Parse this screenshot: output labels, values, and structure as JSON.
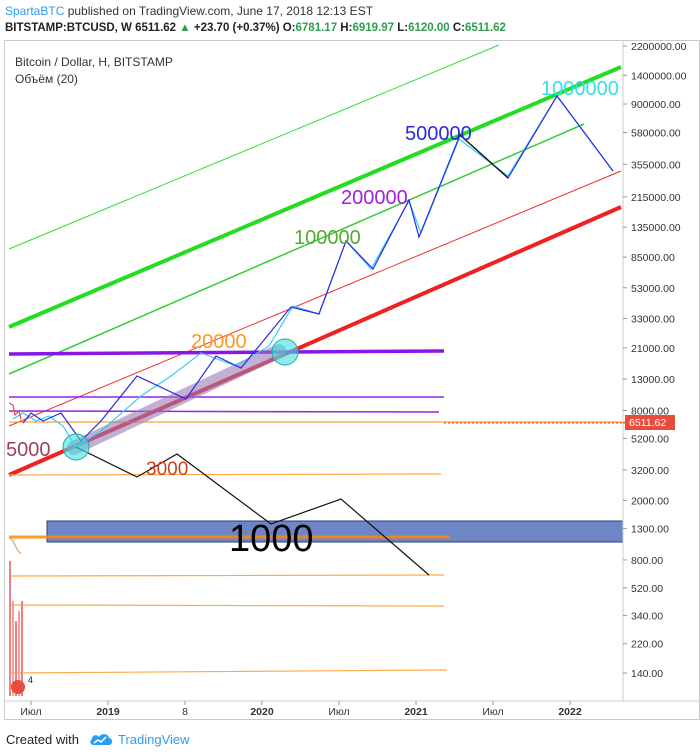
{
  "header": {
    "author": "SpartaBTC",
    "published": "published on TradingView.com, June 17, 2018 12:13 EST",
    "symbol": "BITSTAMP:BTCUSD, W",
    "price": "6511.62",
    "change": "+23.70 (+0.37%)",
    "o_label": "O:",
    "o_val": "6781.17",
    "h_label": "H:",
    "h_val": "6919.97",
    "l_label": "L:",
    "l_val": "6120.00",
    "c_label": "C:",
    "c_val": "6511.62"
  },
  "legend": {
    "title": "Bitcoin / Dollar, H, BITSTAMP",
    "volume": "Объём (20)"
  },
  "price_tag": "6511.62",
  "footer": {
    "created": "Created with",
    "brand": "TradingView"
  },
  "colors": {
    "green": "#22dd22",
    "red": "#ee2222",
    "purple": "#8a16e6",
    "blue_path": "#2a2ae0",
    "cyan_path": "#33ccff",
    "zone": "#4a68b8",
    "orange": "#ff9a20"
  },
  "chart_data": {
    "type": "line",
    "title": "Bitcoin / Dollar, H, BITSTAMP",
    "y_scale": "log",
    "y_ticks": [
      "2200000.00",
      "1400000.00",
      "900000.00",
      "580000.00",
      "355000.00",
      "215000.00",
      "135000.00",
      "85000.00",
      "53000.00",
      "33000.00",
      "21000.00",
      "13000.00",
      "8000.00",
      "5200.00",
      "3200.00",
      "2000.00",
      "1300.00",
      "800.00",
      "520.00",
      "340.00",
      "220.00",
      "140.00"
    ],
    "x_ticks": [
      "Июл",
      "2019",
      "8",
      "2020",
      "Июл",
      "2021",
      "Июл",
      "2022"
    ],
    "annotations": [
      {
        "text": "1000000",
        "color": "#33ddee"
      },
      {
        "text": "500000",
        "color": "#2a2ae0"
      },
      {
        "text": "200000",
        "color": "#a020e0"
      },
      {
        "text": "100000",
        "color": "#55aa33"
      },
      {
        "text": "20000",
        "color": "#ff9a20"
      },
      {
        "text": "5000",
        "color": "#a04060"
      },
      {
        "text": "3000",
        "color": "#d04020"
      },
      {
        "text": "1000",
        "color": "#000000"
      }
    ],
    "series": [
      {
        "values": [
          6500,
          8000,
          6000,
          5000,
          13000,
          8500,
          18000,
          13000,
          35000,
          30000,
          110000,
          68000,
          200000,
          120000,
          650000,
          300000,
          1000000,
          355000
        ]
      },
      {
        "values": [
          6500,
          5000,
          3000,
          3500,
          2000,
          1000,
          1300,
          2000,
          520
        ]
      }
    ]
  }
}
